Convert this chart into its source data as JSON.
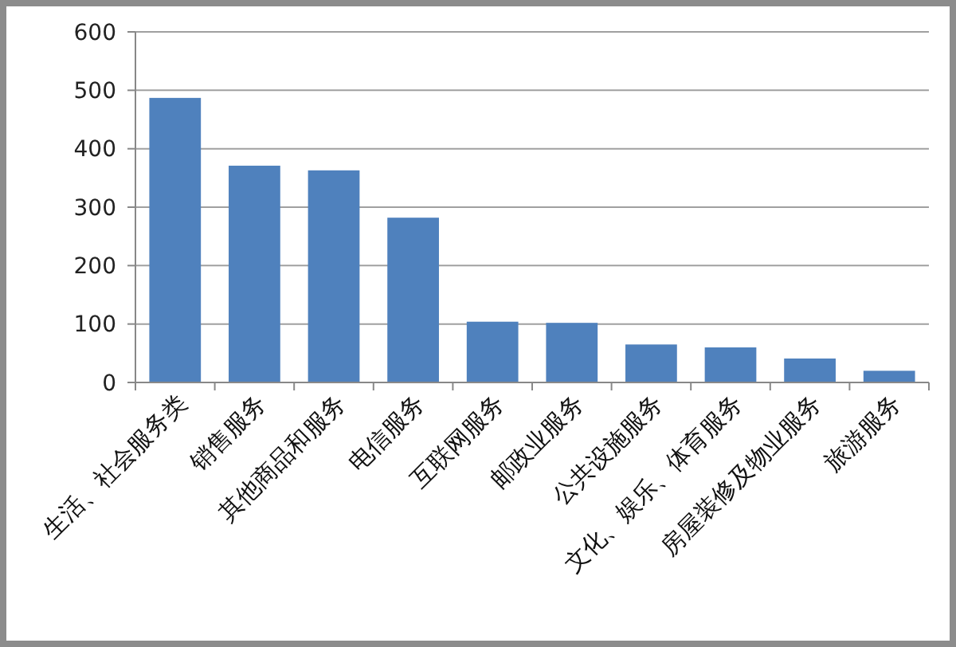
{
  "chart_data": {
    "type": "bar",
    "categories": [
      "生活、社会服务类",
      "销售服务",
      "其他商品和服务",
      "电信服务",
      "互联网服务",
      "邮政业服务",
      "公共设施服务",
      "文化、娱乐、体育服务",
      "房屋装修及物业服务",
      "旅游服务"
    ],
    "values": [
      487,
      371,
      363,
      282,
      104,
      102,
      65,
      60,
      41,
      20
    ],
    "color": "#4f81bd",
    "ylim": [
      0,
      600
    ],
    "yticks": [
      0,
      100,
      200,
      300,
      400,
      500,
      600
    ],
    "grid": "y"
  }
}
